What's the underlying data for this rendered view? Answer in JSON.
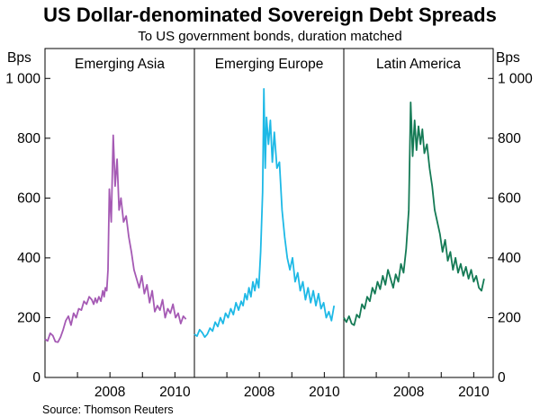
{
  "chart_data": {
    "type": "line",
    "title": "US Dollar-denominated Sovereign Debt Spreads",
    "subtitle": "To US government bonds, duration matched",
    "source": "Source: Thomson Reuters",
    "y_unit_label": "Bps",
    "ylim": [
      0,
      1100
    ],
    "yticks": [
      0,
      200,
      400,
      600,
      800,
      1000
    ],
    "ytick_labels": [
      "0",
      "200",
      "400",
      "600",
      "800",
      "1 000"
    ],
    "xlim": [
      2006.0,
      2010.6
    ],
    "xticks": [
      2007,
      2008,
      2009,
      2010
    ],
    "xtick_labels": [
      "2008",
      "2010"
    ],
    "xtick_label_values": [
      2008,
      2010
    ],
    "grid": false,
    "panels": [
      {
        "label": "Emerging Asia",
        "color": "#a55ab4",
        "series": [
          {
            "x": [
              2006.0,
              2006.08,
              2006.16,
              2006.24,
              2006.32,
              2006.4,
              2006.48,
              2006.56,
              2006.64,
              2006.72,
              2006.8,
              2006.88,
              2006.96,
              2007.04,
              2007.12,
              2007.2,
              2007.28,
              2007.36,
              2007.44,
              2007.5,
              2007.55,
              2007.6,
              2007.66,
              2007.72,
              2007.78,
              2007.82,
              2007.86,
              2007.9,
              2007.94,
              2007.98,
              2008.04,
              2008.1,
              2008.16,
              2008.22,
              2008.28,
              2008.34,
              2008.42,
              2008.5,
              2008.58,
              2008.66,
              2008.74,
              2008.82,
              2008.9,
              2008.98,
              2009.06,
              2009.14,
              2009.22,
              2009.3,
              2009.38,
              2009.46,
              2009.54,
              2009.62,
              2009.7,
              2009.78,
              2009.86,
              2009.94,
              2010.02,
              2010.1,
              2010.18,
              2010.26,
              2010.34
            ],
            "y": [
              128,
              122,
              148,
              140,
              120,
              118,
              135,
              160,
              190,
              205,
              175,
              215,
              200,
              230,
              225,
              255,
              245,
              270,
              260,
              245,
              265,
              250,
              270,
              255,
              290,
              270,
              300,
              290,
              360,
              630,
              520,
              810,
              640,
              730,
              560,
              600,
              520,
              540,
              470,
              420,
              360,
              330,
              300,
              340,
              280,
              310,
              250,
              290,
              220,
              240,
              225,
              260,
              200,
              230,
              215,
              245,
              200,
              215,
              180,
              205,
              195
            ]
          }
        ]
      },
      {
        "label": "Emerging Europe",
        "color": "#1eb9e6",
        "series": [
          {
            "x": [
              2006.0,
              2006.08,
              2006.16,
              2006.24,
              2006.32,
              2006.4,
              2006.48,
              2006.56,
              2006.64,
              2006.72,
              2006.8,
              2006.88,
              2006.96,
              2007.04,
              2007.12,
              2007.2,
              2007.28,
              2007.36,
              2007.44,
              2007.5,
              2007.56,
              2007.62,
              2007.68,
              2007.74,
              2007.8,
              2007.86,
              2007.92,
              2007.98,
              2008.04,
              2008.1,
              2008.14,
              2008.18,
              2008.22,
              2008.28,
              2008.34,
              2008.4,
              2008.46,
              2008.54,
              2008.62,
              2008.7,
              2008.78,
              2008.86,
              2008.94,
              2009.02,
              2009.1,
              2009.18,
              2009.26,
              2009.34,
              2009.42,
              2009.5,
              2009.58,
              2009.66,
              2009.74,
              2009.82,
              2009.9,
              2009.98,
              2010.06,
              2010.14,
              2010.22,
              2010.3
            ],
            "y": [
              145,
              138,
              160,
              150,
              135,
              145,
              165,
              155,
              185,
              170,
              200,
              180,
              215,
              200,
              230,
              210,
              250,
              225,
              255,
              240,
              280,
              260,
              300,
              270,
              320,
              290,
              330,
              300,
              420,
              620,
              965,
              700,
              870,
              780,
              860,
              720,
              820,
              700,
              720,
              560,
              470,
              400,
              360,
              400,
              320,
              350,
              290,
              320,
              260,
              300,
              250,
              290,
              240,
              280,
              230,
              250,
              200,
              220,
              190,
              240
            ]
          }
        ]
      },
      {
        "label": "Latin America",
        "color": "#147a55",
        "series": [
          {
            "x": [
              2006.0,
              2006.08,
              2006.16,
              2006.24,
              2006.32,
              2006.4,
              2006.48,
              2006.56,
              2006.64,
              2006.72,
              2006.8,
              2006.88,
              2006.96,
              2007.04,
              2007.12,
              2007.2,
              2007.28,
              2007.36,
              2007.44,
              2007.52,
              2007.6,
              2007.68,
              2007.76,
              2007.84,
              2007.92,
              2008.0,
              2008.06,
              2008.12,
              2008.18,
              2008.24,
              2008.3,
              2008.36,
              2008.42,
              2008.48,
              2008.56,
              2008.64,
              2008.72,
              2008.8,
              2008.88,
              2008.96,
              2009.04,
              2009.12,
              2009.2,
              2009.28,
              2009.36,
              2009.44,
              2009.52,
              2009.6,
              2009.68,
              2009.76,
              2009.84,
              2009.92,
              2010.0,
              2010.08,
              2010.16,
              2010.24,
              2010.32
            ],
            "y": [
              200,
              185,
              205,
              180,
              175,
              210,
              200,
              245,
              230,
              270,
              255,
              300,
              280,
              320,
              295,
              340,
              310,
              360,
              330,
              300,
              345,
              320,
              380,
              350,
              430,
              560,
              920,
              740,
              860,
              760,
              840,
              780,
              830,
              750,
              780,
              700,
              640,
              560,
              520,
              480,
              420,
              460,
              390,
              420,
              360,
              400,
              350,
              380,
              340,
              370,
              330,
              360,
              320,
              340,
              300,
              290,
              330
            ]
          }
        ]
      }
    ]
  }
}
